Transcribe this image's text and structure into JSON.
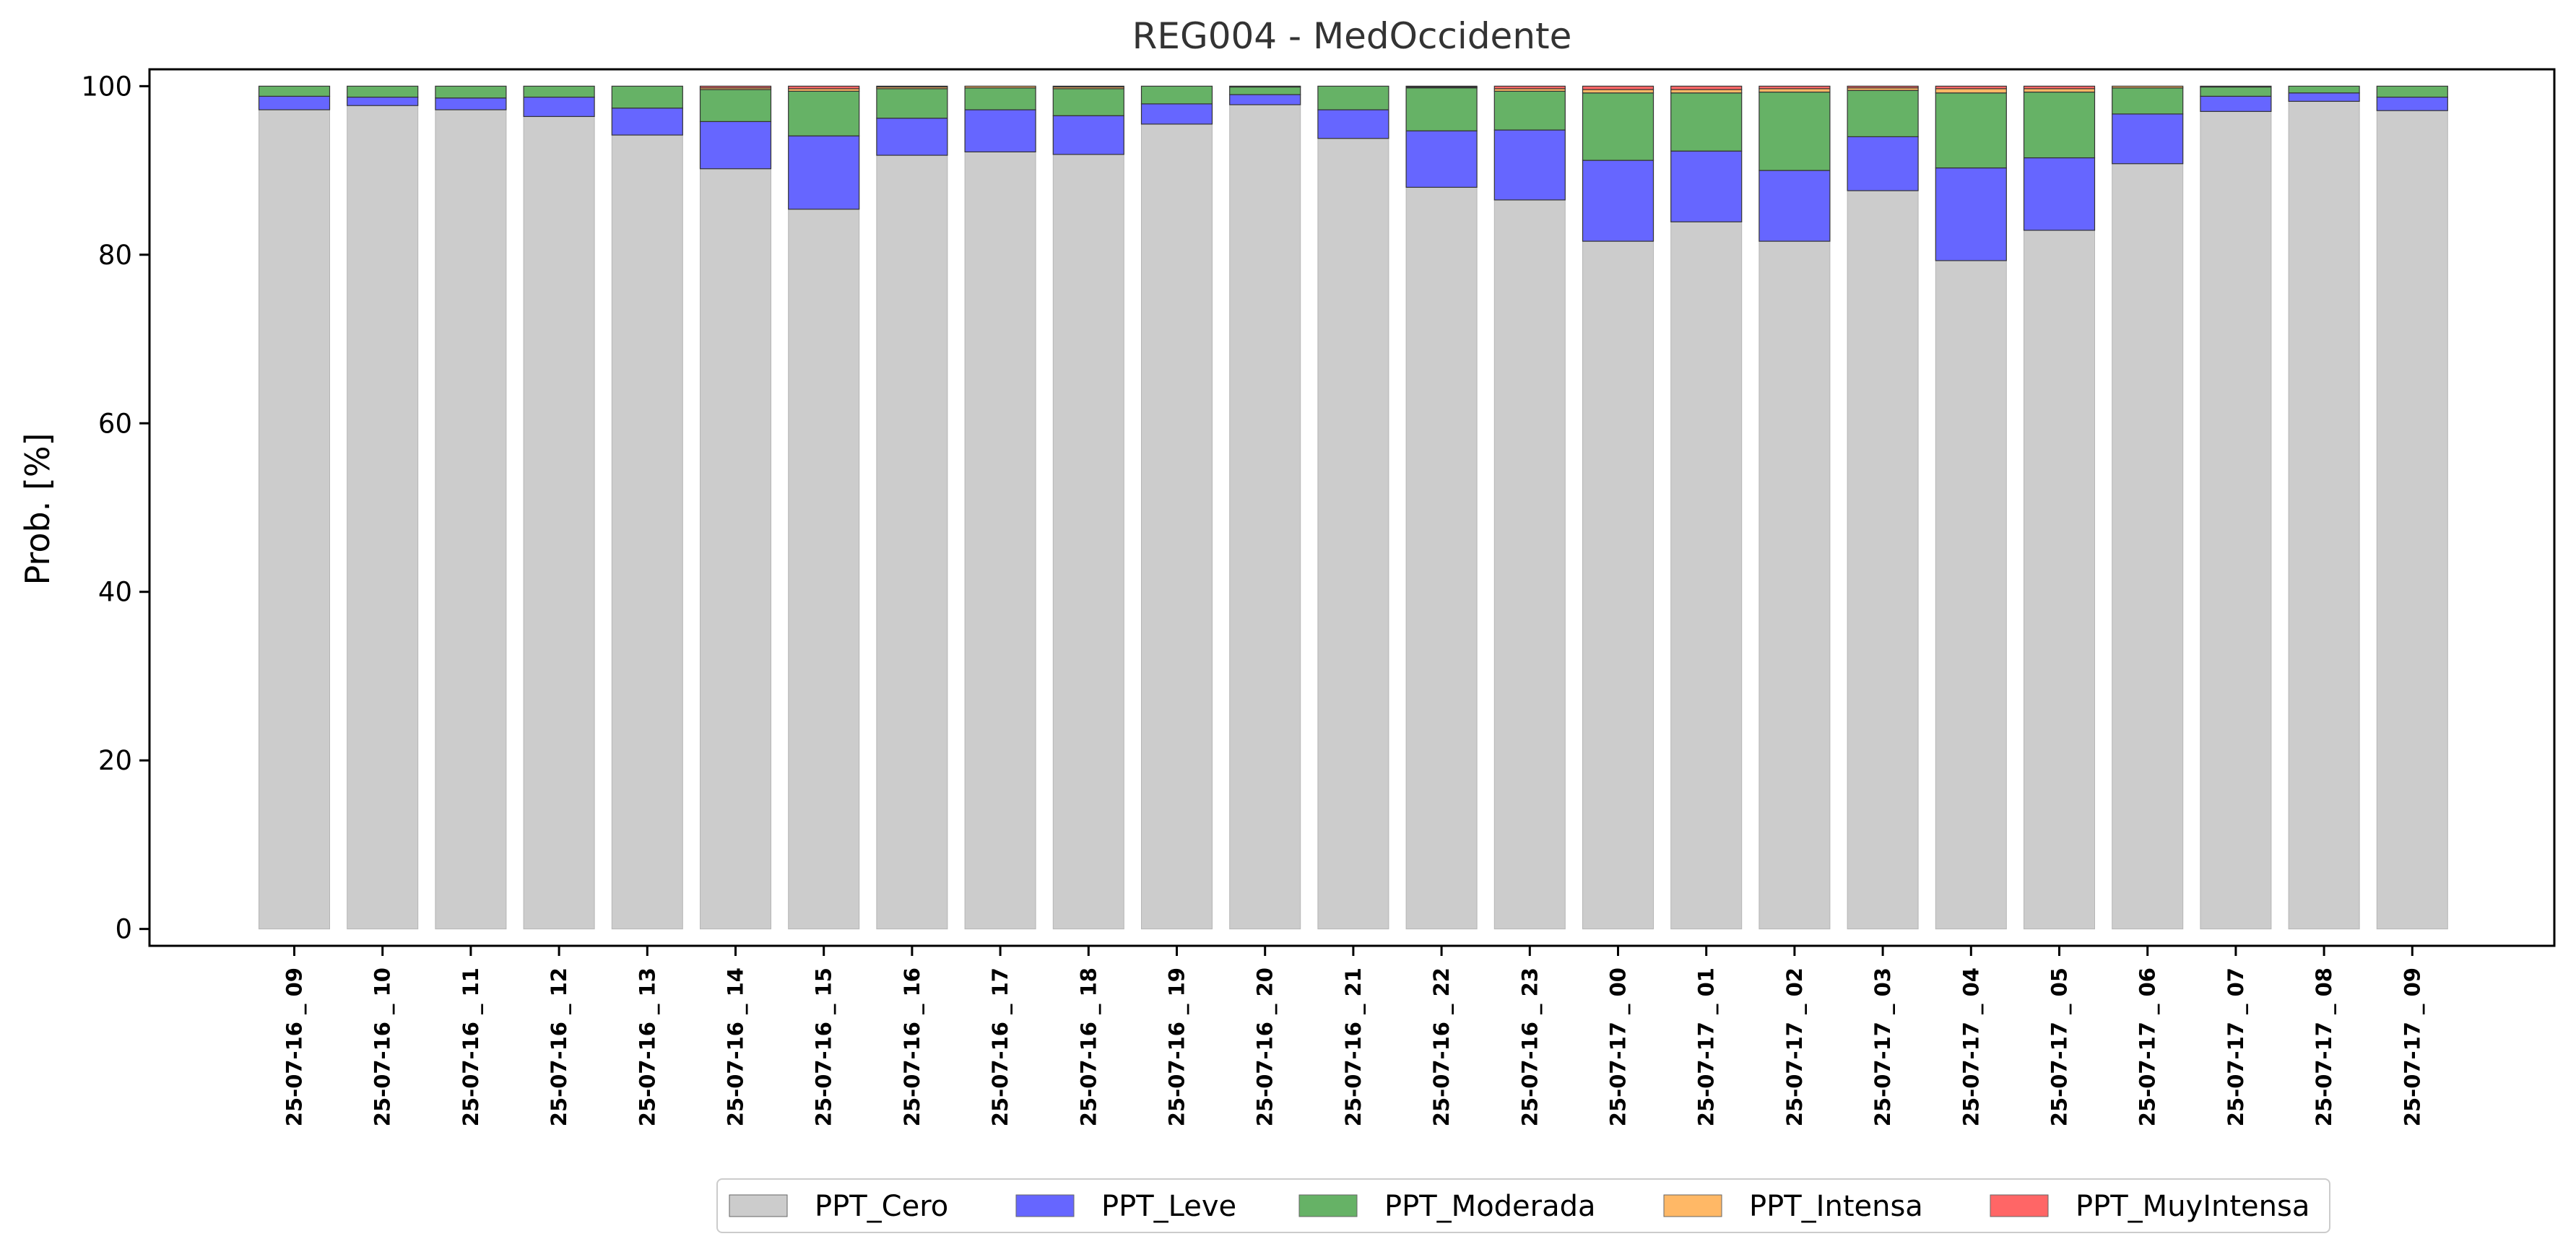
{
  "chart_data": {
    "type": "bar",
    "stacked": true,
    "title": "REG004 - MedOccidente",
    "xlabel": "",
    "ylabel": "Prob. [%]",
    "ylim": [
      -2,
      102
    ],
    "yticks": [
      0,
      20,
      40,
      60,
      80,
      100
    ],
    "grid": false,
    "legend_position": "bottom-center",
    "categories": [
      "25-07-16 _ 09",
      "25-07-16 _ 10",
      "25-07-16 _ 11",
      "25-07-16 _ 12",
      "25-07-16 _ 13",
      "25-07-16 _ 14",
      "25-07-16 _ 15",
      "25-07-16 _ 16",
      "25-07-16 _ 17",
      "25-07-16 _ 18",
      "25-07-16 _ 19",
      "25-07-16 _ 20",
      "25-07-16 _ 21",
      "25-07-16 _ 22",
      "25-07-16 _ 23",
      "25-07-17 _ 00",
      "25-07-17 _ 01",
      "25-07-17 _ 02",
      "25-07-17 _ 03",
      "25-07-17 _ 04",
      "25-07-17 _ 05",
      "25-07-17 _ 06",
      "25-07-17 _ 07",
      "25-07-17 _ 08",
      "25-07-17 _ 09"
    ],
    "series": [
      {
        "name": "PPT_Cero",
        "color": "#cccccc",
        "values": [
          97.2,
          97.7,
          97.2,
          96.4,
          94.2,
          90.2,
          85.4,
          91.8,
          92.2,
          91.9,
          95.5,
          97.8,
          93.8,
          88.0,
          86.5,
          81.6,
          83.9,
          81.6,
          87.6,
          79.3,
          82.9,
          90.8,
          97.0,
          98.2,
          97.1
        ]
      },
      {
        "name": "PPT_Leve",
        "color": "#6666ff",
        "values": [
          1.6,
          1.0,
          1.4,
          2.3,
          3.2,
          5.6,
          8.7,
          4.4,
          5.0,
          4.6,
          2.4,
          1.2,
          3.4,
          6.7,
          8.3,
          9.6,
          8.4,
          8.4,
          6.4,
          11.0,
          8.6,
          5.9,
          1.8,
          1.0,
          1.6
        ]
      },
      {
        "name": "PPT_Moderada",
        "color": "#66b266",
        "values": [
          1.2,
          1.3,
          1.4,
          1.3,
          2.6,
          3.8,
          5.3,
          3.5,
          2.6,
          3.2,
          2.1,
          0.9,
          2.8,
          5.1,
          4.6,
          8.0,
          6.9,
          9.3,
          5.5,
          8.9,
          7.8,
          3.1,
          1.1,
          0.8,
          1.3
        ]
      },
      {
        "name": "PPT_Intensa",
        "color": "#ffb866",
        "values": [
          0,
          0,
          0,
          0,
          0,
          0.2,
          0.3,
          0.2,
          0.2,
          0.2,
          0,
          0,
          0,
          0.1,
          0.3,
          0.4,
          0.4,
          0.4,
          0.3,
          0.5,
          0.4,
          0.2,
          0.1,
          0,
          0
        ]
      },
      {
        "name": "PPT_MuyIntensa",
        "color": "#ff6666",
        "values": [
          0,
          0,
          0,
          0,
          0,
          0.2,
          0.3,
          0.1,
          0,
          0.1,
          0,
          0.1,
          0,
          0.1,
          0.3,
          0.4,
          0.4,
          0.3,
          0.2,
          0.3,
          0.3,
          0,
          0,
          0,
          0
        ]
      }
    ]
  }
}
